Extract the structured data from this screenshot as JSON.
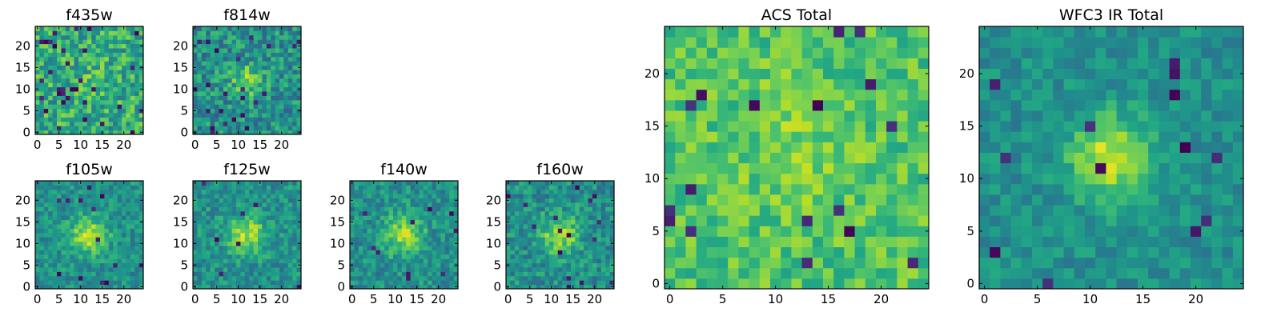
{
  "chart_data": [
    {
      "type": "heatmap",
      "title": "f435w",
      "grid_size": 25,
      "xlim": [
        0,
        24
      ],
      "ylim": [
        0,
        24
      ],
      "xticks": [
        0,
        5,
        10,
        15,
        20
      ],
      "yticks": [
        0,
        5,
        10,
        15,
        20
      ],
      "source_center": [
        12,
        12
      ],
      "source_peak": 0.05,
      "source_sigma": 3.0,
      "noise_level": 0.22,
      "baseline": 0.62,
      "dead_pixel_rate": 0.05,
      "seed": 11
    },
    {
      "type": "heatmap",
      "title": "f814w",
      "grid_size": 25,
      "xlim": [
        0,
        24
      ],
      "ylim": [
        0,
        24
      ],
      "xticks": [
        0,
        5,
        10,
        15,
        20
      ],
      "yticks": [
        0,
        5,
        10,
        15,
        20
      ],
      "source_center": [
        12,
        12
      ],
      "source_peak": 0.3,
      "source_sigma": 2.6,
      "noise_level": 0.2,
      "baseline": 0.5,
      "dead_pixel_rate": 0.03,
      "seed": 23
    },
    {
      "type": "heatmap",
      "title": "f105w",
      "grid_size": 25,
      "xlim": [
        0,
        24
      ],
      "ylim": [
        0,
        24
      ],
      "xticks": [
        0,
        5,
        10,
        15,
        20
      ],
      "yticks": [
        0,
        5,
        10,
        15,
        20
      ],
      "source_center": [
        12,
        12
      ],
      "source_peak": 0.4,
      "source_sigma": 3.0,
      "noise_level": 0.14,
      "baseline": 0.5,
      "dead_pixel_rate": 0.012,
      "seed": 37
    },
    {
      "type": "heatmap",
      "title": "f125w",
      "grid_size": 25,
      "xlim": [
        0,
        24
      ],
      "ylim": [
        0,
        24
      ],
      "xticks": [
        0,
        5,
        10,
        15,
        20
      ],
      "yticks": [
        0,
        5,
        10,
        15,
        20
      ],
      "source_center": [
        12,
        12
      ],
      "source_peak": 0.38,
      "source_sigma": 3.0,
      "noise_level": 0.15,
      "baseline": 0.5,
      "dead_pixel_rate": 0.012,
      "seed": 41
    },
    {
      "type": "heatmap",
      "title": "f140w",
      "grid_size": 25,
      "xlim": [
        0,
        24
      ],
      "ylim": [
        0,
        24
      ],
      "xticks": [
        0,
        5,
        10,
        15,
        20
      ],
      "yticks": [
        0,
        5,
        10,
        15,
        20
      ],
      "source_center": [
        12,
        12
      ],
      "source_peak": 0.35,
      "source_sigma": 3.2,
      "noise_level": 0.15,
      "baseline": 0.5,
      "dead_pixel_rate": 0.015,
      "seed": 53
    },
    {
      "type": "heatmap",
      "title": "f160w",
      "grid_size": 25,
      "xlim": [
        0,
        24
      ],
      "ylim": [
        0,
        24
      ],
      "xticks": [
        0,
        5,
        10,
        15,
        20
      ],
      "yticks": [
        0,
        5,
        10,
        15,
        20
      ],
      "source_center": [
        12,
        12
      ],
      "source_peak": 0.38,
      "source_sigma": 3.0,
      "noise_level": 0.16,
      "baseline": 0.5,
      "dead_pixel_rate": 0.015,
      "seed": 67
    },
    {
      "type": "heatmap",
      "title": "ACS Total",
      "grid_size": 25,
      "xlim": [
        0,
        24
      ],
      "ylim": [
        0,
        24
      ],
      "xticks": [
        0,
        5,
        10,
        15,
        20
      ],
      "yticks": [
        0,
        5,
        10,
        15,
        20
      ],
      "source_center": [
        12,
        13
      ],
      "source_peak": 0.08,
      "source_sigma": 4.0,
      "noise_level": 0.14,
      "baseline": 0.72,
      "dead_pixel_rate": 0.022,
      "seed": 79
    },
    {
      "type": "heatmap",
      "title": "WFC3 IR Total",
      "grid_size": 25,
      "xlim": [
        0,
        24
      ],
      "ylim": [
        0,
        24
      ],
      "xticks": [
        0,
        5,
        10,
        15,
        20
      ],
      "yticks": [
        0,
        5,
        10,
        15,
        20
      ],
      "source_center": [
        12,
        12
      ],
      "source_peak": 0.42,
      "source_sigma": 2.8,
      "noise_level": 0.11,
      "baseline": 0.5,
      "dead_pixel_rate": 0.025,
      "seed": 97
    }
  ],
  "colormap": "viridis"
}
